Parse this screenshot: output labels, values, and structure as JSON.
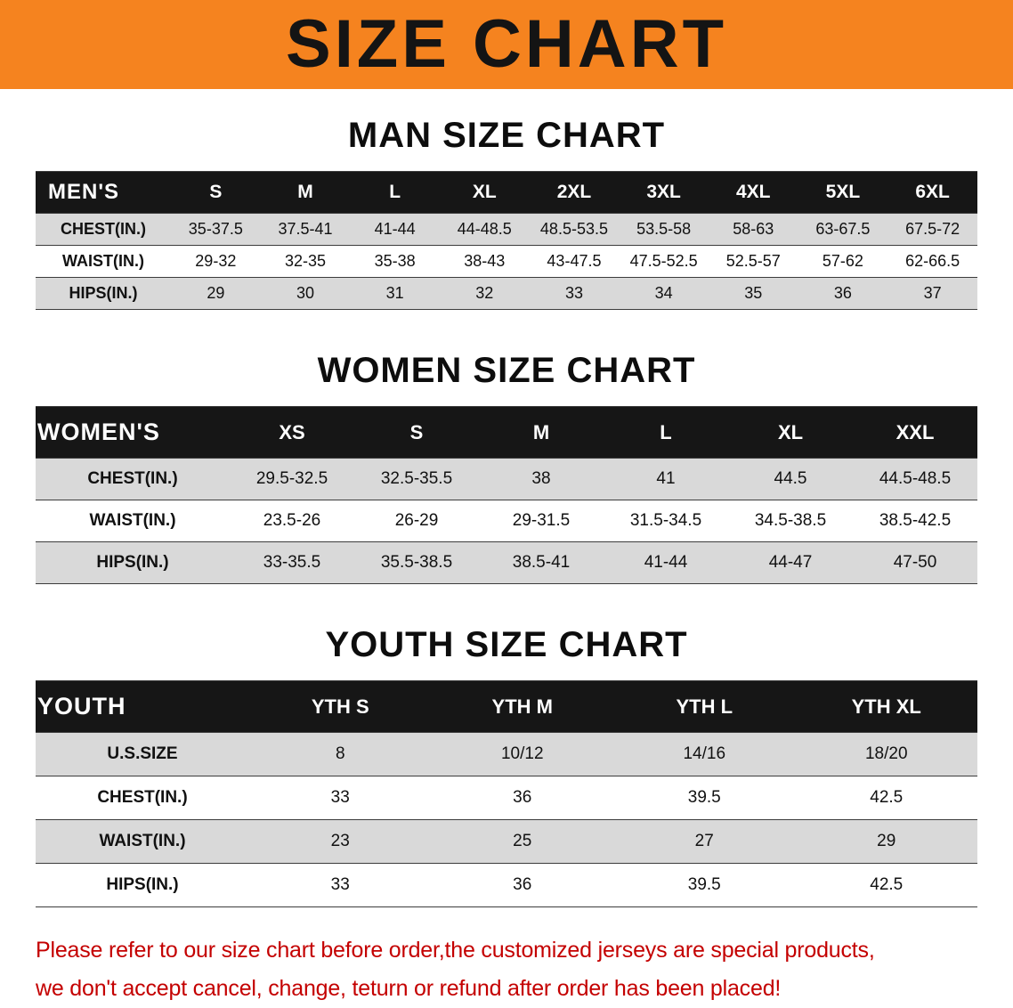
{
  "colors": {
    "banner_bg": "#f5831f",
    "banner_text": "#141414",
    "header_bar_bg": "#161616",
    "header_bar_text": "#ffffff",
    "row_shade": "#d9d9d9",
    "row_plain": "#ffffff",
    "rule_color": "#3c3c3c",
    "footer_text": "#c40000"
  },
  "banner": {
    "title": "SIZE CHART"
  },
  "sections": [
    {
      "heading": "MAN SIZE CHART",
      "table": {
        "label": "MEN'S",
        "columns": [
          "S",
          "M",
          "L",
          "XL",
          "2XL",
          "3XL",
          "4XL",
          "5XL",
          "6XL"
        ],
        "rows": [
          {
            "label": "CHEST(IN.)",
            "values": [
              "35-37.5",
              "37.5-41",
              "41-44",
              "44-48.5",
              "48.5-53.5",
              "53.5-58",
              "58-63",
              "63-67.5",
              "67.5-72"
            ]
          },
          {
            "label": "WAIST(IN.)",
            "values": [
              "29-32",
              "32-35",
              "35-38",
              "38-43",
              "43-47.5",
              "47.5-52.5",
              "52.5-57",
              "57-62",
              "62-66.5"
            ]
          },
          {
            "label": "HIPS(IN.)",
            "values": [
              "29",
              "30",
              "31",
              "32",
              "33",
              "34",
              "35",
              "36",
              "37"
            ]
          }
        ]
      }
    },
    {
      "heading": "WOMEN SIZE CHART",
      "table": {
        "label": "WOMEN'S",
        "columns": [
          "XS",
          "S",
          "M",
          "L",
          "XL",
          "XXL"
        ],
        "rows": [
          {
            "label": "CHEST(IN.)",
            "values": [
              "29.5-32.5",
              "32.5-35.5",
              "38",
              "41",
              "44.5",
              "44.5-48.5"
            ]
          },
          {
            "label": "WAIST(IN.)",
            "values": [
              "23.5-26",
              "26-29",
              "29-31.5",
              "31.5-34.5",
              "34.5-38.5",
              "38.5-42.5"
            ]
          },
          {
            "label": "HIPS(IN.)",
            "values": [
              "33-35.5",
              "35.5-38.5",
              "38.5-41",
              "41-44",
              "44-47",
              "47-50"
            ]
          }
        ]
      }
    },
    {
      "heading": "YOUTH SIZE CHART",
      "table": {
        "label": "YOUTH",
        "columns": [
          "YTH S",
          "YTH M",
          "YTH L",
          "YTH XL"
        ],
        "rows": [
          {
            "label": "U.S.SIZE",
            "values": [
              "8",
              "10/12",
              "14/16",
              "18/20"
            ]
          },
          {
            "label": "CHEST(IN.)",
            "values": [
              "33",
              "36",
              "39.5",
              "42.5"
            ]
          },
          {
            "label": "WAIST(IN.)",
            "values": [
              "23",
              "25",
              "27",
              "29"
            ]
          },
          {
            "label": "HIPS(IN.)",
            "values": [
              "33",
              "36",
              "39.5",
              "42.5"
            ]
          }
        ]
      }
    }
  ],
  "footer": {
    "line1": "Please refer to our size chart before order,the customized jerseys are special products,",
    "line2": "we don't accept cancel, change, teturn or refund after order has been placed!"
  }
}
